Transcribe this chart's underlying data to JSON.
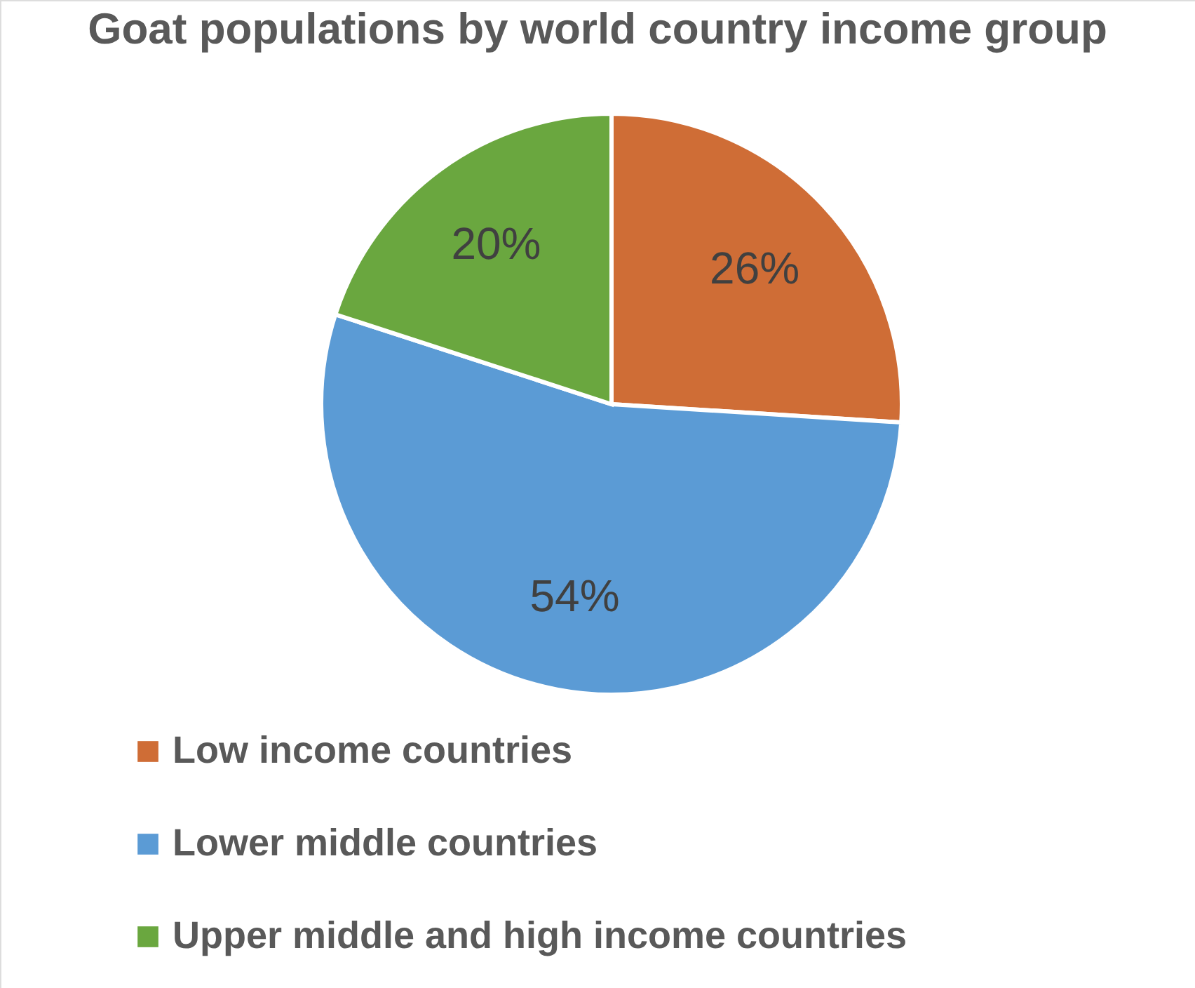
{
  "chart_data": {
    "type": "pie",
    "title": "Goat populations by world country income group",
    "categories": [
      "Low income countries",
      "Lower middle countries",
      "Upper middle and high income countries"
    ],
    "values": [
      26,
      54,
      20
    ],
    "colors": [
      "#cf6d36",
      "#5b9bd5",
      "#6aa73f"
    ],
    "value_labels": [
      "26%",
      "54%",
      "20%"
    ],
    "legend": "bottom"
  }
}
